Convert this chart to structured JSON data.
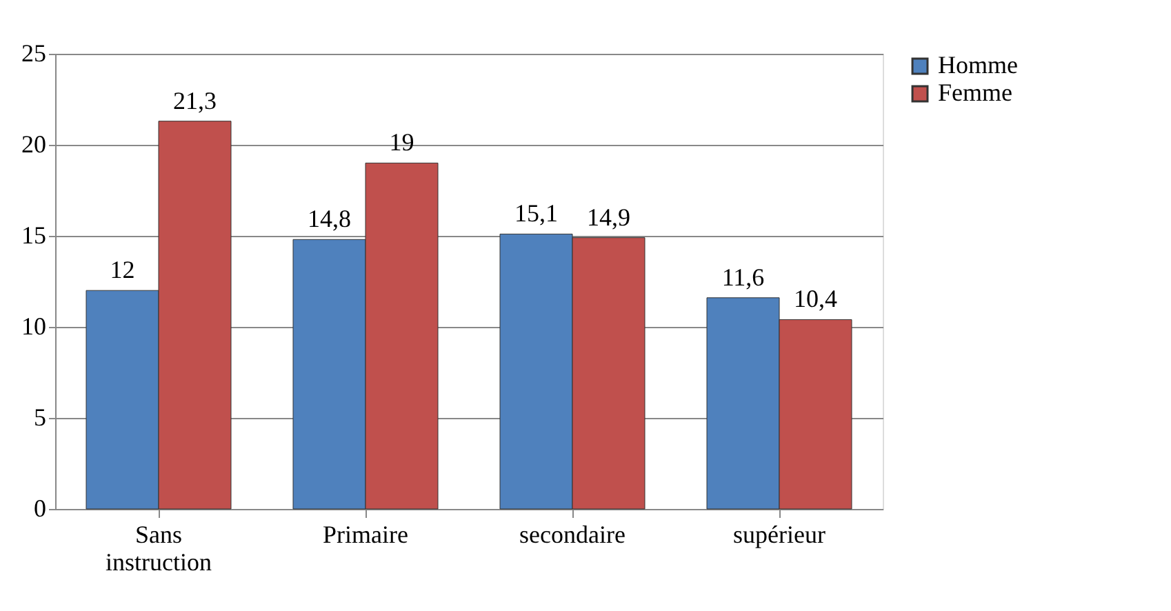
{
  "chart_data": {
    "type": "bar",
    "categories": [
      "Sans instruction",
      "Primaire",
      "secondaire",
      "supérieur"
    ],
    "series": [
      {
        "name": "Homme",
        "color": "#4f81bd",
        "values": [
          12,
          14.8,
          15.1,
          11.6
        ],
        "value_labels": [
          "12",
          "14,8",
          "15,1",
          "11,6"
        ]
      },
      {
        "name": "Femme",
        "color": "#c0504d",
        "values": [
          21.3,
          19,
          14.9,
          10.4
        ],
        "value_labels": [
          "21,3",
          "19",
          "14,9",
          "10,4"
        ]
      }
    ],
    "ylim": [
      0,
      25
    ],
    "yticks": [
      0,
      5,
      10,
      15,
      20,
      25
    ],
    "grid": "y",
    "legend": "right"
  }
}
